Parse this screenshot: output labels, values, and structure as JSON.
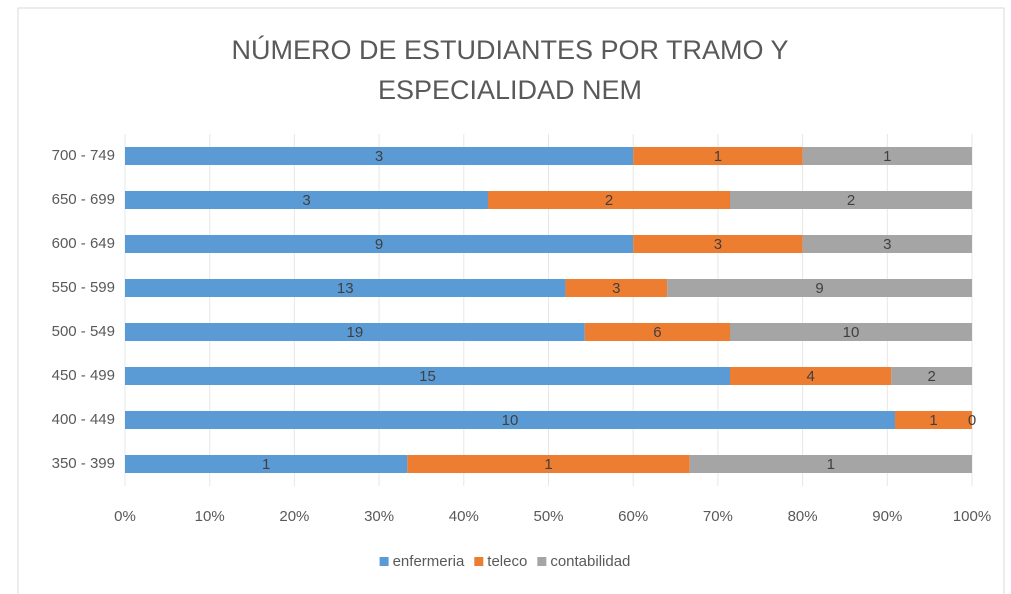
{
  "chart_data": {
    "type": "bar",
    "orientation": "horizontal",
    "stacking": "percent",
    "title": "NÚMERO DE ESTUDIANTES POR TRAMO Y ESPECIALIDAD NEM",
    "categories": [
      "350 - 399",
      "400 - 449",
      "450 - 499",
      "500 - 549",
      "550 - 599",
      "600 - 649",
      "650 - 699",
      "700 - 749"
    ],
    "series": [
      {
        "name": "enfermeria",
        "color": "#5b9bd5",
        "values": [
          1,
          10,
          15,
          19,
          13,
          9,
          3,
          3
        ]
      },
      {
        "name": "teleco",
        "color": "#ed7d31",
        "values": [
          1,
          1,
          4,
          6,
          3,
          3,
          2,
          1
        ]
      },
      {
        "name": "contabilidad",
        "color": "#a5a5a5",
        "values": [
          1,
          0,
          2,
          10,
          9,
          3,
          2,
          1
        ]
      }
    ],
    "xlim": [
      0,
      100
    ],
    "xticks": [
      {
        "value": 0,
        "label": "0%"
      },
      {
        "value": 10,
        "label": "10%"
      },
      {
        "value": 20,
        "label": "20%"
      },
      {
        "value": 30,
        "label": "30%"
      },
      {
        "value": 40,
        "label": "40%"
      },
      {
        "value": 50,
        "label": "50%"
      },
      {
        "value": 60,
        "label": "60%"
      },
      {
        "value": 70,
        "label": "70%"
      },
      {
        "value": 80,
        "label": "80%"
      },
      {
        "value": 90,
        "label": "90%"
      },
      {
        "value": 100,
        "label": "100%"
      }
    ],
    "grid": true,
    "legend": "bottom"
  }
}
